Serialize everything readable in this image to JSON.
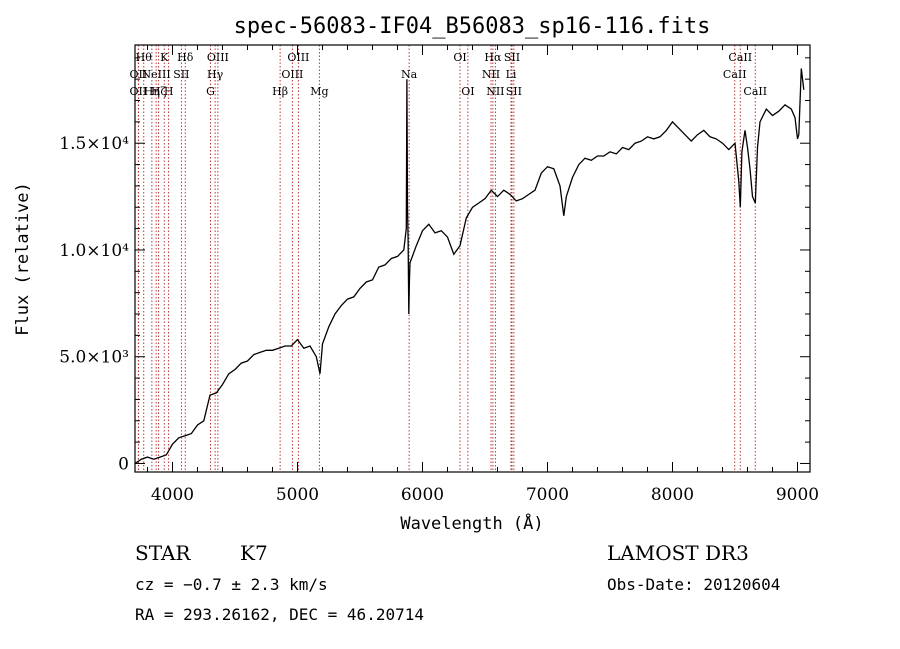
{
  "chart_data": {
    "type": "line",
    "title": "spec-56083-IF04_B56083_sp16-116.fits",
    "xlabel": "Wavelength (Å)",
    "ylabel": "Flux (relative)",
    "xlim": [
      3700,
      9100
    ],
    "ylim": [
      -400,
      19600
    ],
    "x_ticks": [
      {
        "value": 4000,
        "label": "4000"
      },
      {
        "value": 5000,
        "label": "5000"
      },
      {
        "value": 6000,
        "label": "6000"
      },
      {
        "value": 7000,
        "label": "7000"
      },
      {
        "value": 8000,
        "label": "8000"
      },
      {
        "value": 9000,
        "label": "9000"
      }
    ],
    "y_ticks": [
      {
        "value": 0,
        "label": "0"
      },
      {
        "value": 5000,
        "label": "5.0×10³"
      },
      {
        "value": 10000,
        "label": "1.0×10⁴"
      },
      {
        "value": 15000,
        "label": "1.5×10⁴"
      }
    ],
    "line_color": "#000000",
    "marker_color": "#b22222",
    "series": [
      {
        "name": "Flux",
        "x": [
          3700,
          3750,
          3800,
          3850,
          3900,
          3950,
          4000,
          4050,
          4100,
          4150,
          4200,
          4250,
          4300,
          4350,
          4400,
          4450,
          4500,
          4550,
          4600,
          4650,
          4700,
          4750,
          4800,
          4850,
          4900,
          4950,
          5000,
          5050,
          5100,
          5150,
          5180,
          5200,
          5250,
          5300,
          5350,
          5400,
          5450,
          5500,
          5550,
          5600,
          5650,
          5700,
          5750,
          5800,
          5850,
          5870,
          5875,
          5880,
          5885,
          5890,
          5895,
          5900,
          5950,
          6000,
          6050,
          6100,
          6150,
          6200,
          6250,
          6300,
          6350,
          6400,
          6450,
          6500,
          6550,
          6600,
          6650,
          6700,
          6750,
          6800,
          6850,
          6900,
          6950,
          7000,
          7050,
          7100,
          7130,
          7150,
          7200,
          7250,
          7300,
          7350,
          7400,
          7450,
          7500,
          7550,
          7600,
          7650,
          7700,
          7750,
          7800,
          7850,
          7900,
          7950,
          8000,
          8050,
          8100,
          8150,
          8200,
          8250,
          8300,
          8350,
          8400,
          8450,
          8500,
          8530,
          8542,
          8555,
          8580,
          8600,
          8620,
          8640,
          8662,
          8680,
          8700,
          8750,
          8800,
          8850,
          8900,
          8950,
          8980,
          9000,
          9010,
          9030,
          9050
        ],
        "y": [
          0,
          200,
          300,
          200,
          300,
          400,
          900,
          1200,
          1300,
          1400,
          1800,
          2000,
          3200,
          3300,
          3700,
          4200,
          4400,
          4700,
          4800,
          5100,
          5200,
          5300,
          5300,
          5400,
          5500,
          5500,
          5800,
          5400,
          5500,
          5000,
          4200,
          5600,
          6400,
          7000,
          7400,
          7700,
          7800,
          8200,
          8500,
          8600,
          9200,
          9300,
          9600,
          9700,
          10000,
          11000,
          18000,
          12000,
          10500,
          7000,
          8500,
          9400,
          10200,
          10900,
          11200,
          10800,
          10900,
          10600,
          9800,
          10200,
          11500,
          12000,
          12200,
          12400,
          12800,
          12500,
          12800,
          12600,
          12300,
          12400,
          12600,
          12800,
          13600,
          13900,
          13800,
          13000,
          11600,
          12500,
          13400,
          14000,
          14300,
          14200,
          14400,
          14400,
          14600,
          14500,
          14800,
          14700,
          15000,
          15100,
          15300,
          15200,
          15300,
          15600,
          16000,
          15700,
          15400,
          15100,
          15400,
          15600,
          15300,
          15200,
          15000,
          14700,
          15000,
          13200,
          12000,
          14600,
          15600,
          14800,
          13800,
          12500,
          12200,
          14800,
          16000,
          16600,
          16300,
          16500,
          16800,
          16600,
          16200,
          15200,
          15400,
          18500,
          17500
        ]
      }
    ],
    "line_markers": [
      {
        "x": 3770,
        "label": "Hθ",
        "row": 1
      },
      {
        "x": 3727,
        "label": "OII",
        "row": 2
      },
      {
        "x": 3727,
        "label": "OII",
        "row": 3
      },
      {
        "x": 3835,
        "label": "Hη",
        "row": 3
      },
      {
        "x": 3869,
        "label": "NeIII",
        "row": 2
      },
      {
        "x": 3889,
        "label": "Hζ",
        "row": 3
      },
      {
        "x": 3934,
        "label": "K",
        "row": 1
      },
      {
        "x": 3969,
        "label": "H",
        "row": 3
      },
      {
        "x": 4071,
        "label": "SII",
        "row": 2
      },
      {
        "x": 4102,
        "label": "Hδ",
        "row": 1
      },
      {
        "x": 4304,
        "label": "G",
        "row": 3
      },
      {
        "x": 4341,
        "label": "Hγ",
        "row": 2
      },
      {
        "x": 4363,
        "label": "OIII",
        "row": 1
      },
      {
        "x": 4861,
        "label": "Hβ",
        "row": 3
      },
      {
        "x": 4959,
        "label": "OIII",
        "row": 2
      },
      {
        "x": 5007,
        "label": "OIII",
        "row": 1
      },
      {
        "x": 5175,
        "label": "Mg",
        "row": 3
      },
      {
        "x": 5893,
        "label": "Na",
        "row": 2
      },
      {
        "x": 6300,
        "label": "OI",
        "row": 1
      },
      {
        "x": 6363,
        "label": "OI",
        "row": 3
      },
      {
        "x": 6548,
        "label": "NII",
        "row": 2
      },
      {
        "x": 6563,
        "label": "Hα",
        "row": 1
      },
      {
        "x": 6583,
        "label": "NII",
        "row": 3
      },
      {
        "x": 6708,
        "label": "Li",
        "row": 2
      },
      {
        "x": 6716,
        "label": "SII",
        "row": 1
      },
      {
        "x": 6731,
        "label": "SII",
        "row": 3
      },
      {
        "x": 8498,
        "label": "CaII",
        "row": 2
      },
      {
        "x": 8542,
        "label": "CaII",
        "row": 1
      },
      {
        "x": 8662,
        "label": "CaII",
        "row": 3
      }
    ]
  },
  "info": {
    "object_class": "STAR",
    "subclass": "K7",
    "redshift_line": "cz = −0.7 ± 2.3 km/s",
    "coords_line": "RA = 293.26162, DEC =  46.20714",
    "survey": "LAMOST DR3",
    "obs_date": "Obs-Date: 20120604"
  }
}
